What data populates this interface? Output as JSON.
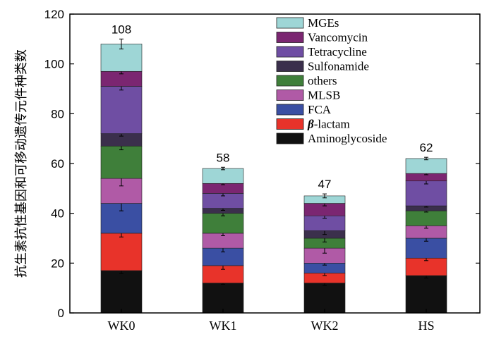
{
  "chart_data": {
    "type": "bar",
    "stacked": true,
    "title": "",
    "xlabel": "",
    "ylabel": "抗生素抗性基因和可移动遗传元件种类数",
    "ylim": [
      0,
      120
    ],
    "yticks": [
      0,
      20,
      40,
      60,
      80,
      100,
      120
    ],
    "categories": [
      "WK0",
      "WK1",
      "WK2",
      "HS"
    ],
    "totals": [
      108,
      58,
      47,
      62
    ],
    "legend_position": "top-right",
    "series": [
      {
        "name": "Aminoglycoside",
        "color": "#111111",
        "values": [
          17,
          12,
          12,
          15
        ],
        "errors": [
          1.2,
          0.5,
          1.0,
          1.0
        ]
      },
      {
        "name": "β-lactam",
        "color": "#e8332a",
        "values": [
          15,
          7,
          4,
          7
        ],
        "errors": [
          1.5,
          1.5,
          1.0,
          1.0
        ]
      },
      {
        "name": "FCA",
        "color": "#3a4fa3",
        "values": [
          12,
          7,
          4,
          8
        ],
        "errors": [
          3.0,
          1.5,
          0.8,
          1.2
        ]
      },
      {
        "name": "MLSB",
        "color": "#b05aa6",
        "values": [
          10,
          6,
          6,
          5
        ],
        "errors": [
          3.0,
          1.0,
          2.0,
          1.0
        ]
      },
      {
        "name": "others",
        "color": "#3f7f3a",
        "values": [
          13,
          8,
          4,
          6
        ],
        "errors": [
          1.5,
          1.0,
          1.5,
          0.5
        ]
      },
      {
        "name": "Sulfonamide",
        "color": "#3b2f4c",
        "values": [
          5,
          2,
          3,
          2
        ],
        "errors": [
          1.0,
          0.8,
          1.5,
          0.5
        ]
      },
      {
        "name": "Tetracycline",
        "color": "#6f4ea3",
        "values": [
          19,
          6,
          6,
          10
        ],
        "errors": [
          1.5,
          1.0,
          1.0,
          1.2
        ]
      },
      {
        "name": "Vancomycin",
        "color": "#7b2671",
        "values": [
          6,
          4,
          5,
          3
        ],
        "errors": [
          1.0,
          0.5,
          1.0,
          0.5
        ]
      },
      {
        "name": "MGEs",
        "color": "#9ed6d6",
        "values": [
          11,
          6,
          3,
          6
        ],
        "errors": [
          2.0,
          0.5,
          0.8,
          0.5
        ]
      }
    ]
  }
}
